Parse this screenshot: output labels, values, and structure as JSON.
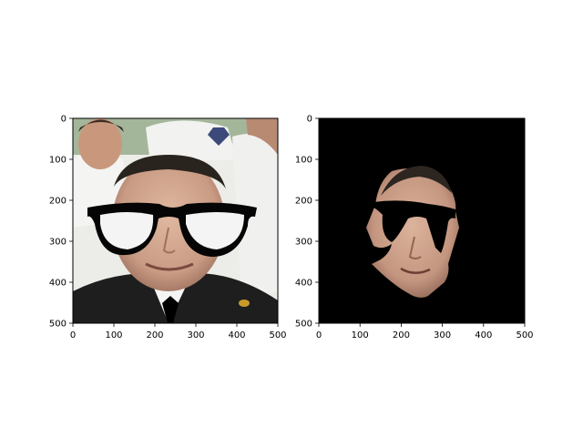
{
  "figure": {
    "background": "#ffffff"
  },
  "chart_data": [
    {
      "type": "image",
      "title": "",
      "xlabel": "",
      "ylabel": "",
      "xlim": [
        0,
        500
      ],
      "ylim": [
        500,
        0
      ],
      "x_ticks": [
        0,
        100,
        200,
        300,
        400,
        500
      ],
      "y_ticks": [
        0,
        100,
        200,
        300,
        400,
        500
      ],
      "grid": false,
      "legend": "none",
      "image_description": "face-photo-with-glasses-overlay",
      "colors": {
        "frame": "#000000",
        "background": "#f0f0f0"
      }
    },
    {
      "type": "image",
      "title": "",
      "xlabel": "",
      "ylabel": "",
      "xlim": [
        0,
        500
      ],
      "ylim": [
        500,
        0
      ],
      "x_ticks": [
        0,
        100,
        200,
        300,
        400,
        500
      ],
      "y_ticks": [
        0,
        100,
        200,
        300,
        400,
        500
      ],
      "grid": false,
      "legend": "none",
      "image_description": "segmented-face-mask-on-black",
      "colors": {
        "background": "#000000",
        "skin": "#c9a089"
      }
    }
  ]
}
